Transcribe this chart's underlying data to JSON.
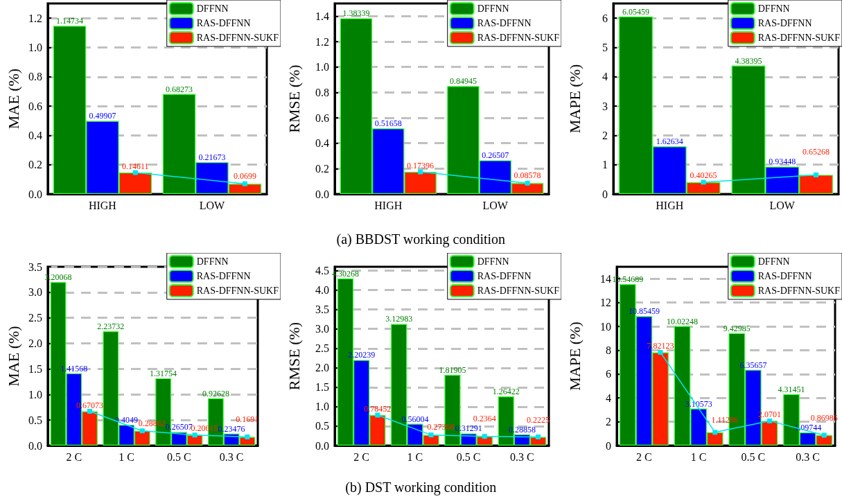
{
  "chart_data": [
    {
      "type": "bar",
      "ylabel": "MAE (%)",
      "categories": [
        "HIGH",
        "LOW"
      ],
      "ylim": [
        0,
        1.3
      ],
      "yticks": [
        {
          "value": 0,
          "label": "0.0"
        },
        {
          "value": 0.2,
          "label": "0.2"
        },
        {
          "value": 0.4,
          "label": "0.4"
        },
        {
          "value": 0.6,
          "label": "0.6"
        },
        {
          "value": 0.8,
          "label": "0.8"
        },
        {
          "value": 1,
          "label": "1.0"
        },
        {
          "value": 1.2,
          "label": "1.2"
        }
      ],
      "grid": "y",
      "legend": "top right",
      "series": [
        {
          "name": "DFFNN",
          "color": "#008000",
          "values": [
            1.14734,
            0.68273
          ],
          "value_labels": [
            "1.14734",
            "0.68273"
          ]
        },
        {
          "name": "RAS-DFFNN",
          "color": "#0000ff",
          "values": [
            0.49907,
            0.21673
          ],
          "value_labels": [
            "0.49907",
            "0.21673"
          ]
        },
        {
          "name": "RAS-DFFNN-SUKF",
          "color": "#ff2000",
          "values": [
            0.14611,
            0.0699
          ],
          "value_labels": [
            "0.14611",
            "0.0699"
          ]
        },
        {
          "type": "line",
          "color": "#00e5ee",
          "marker": "square",
          "values": [
            0.14611,
            0.0699
          ]
        }
      ]
    },
    {
      "type": "bar",
      "ylabel": "RMSE (%)",
      "categories": [
        "HIGH",
        "LOW"
      ],
      "ylim": [
        0,
        1.5
      ],
      "yticks": [
        {
          "value": 0,
          "label": "0.0"
        },
        {
          "value": 0.2,
          "label": "0.2"
        },
        {
          "value": 0.4,
          "label": "0.4"
        },
        {
          "value": 0.6,
          "label": "0.6"
        },
        {
          "value": 0.8,
          "label": "0.8"
        },
        {
          "value": 1,
          "label": "1.0"
        },
        {
          "value": 1.2,
          "label": "1.2"
        },
        {
          "value": 1.4,
          "label": "1.4"
        }
      ],
      "grid": "y",
      "legend": "top right",
      "annotations": [
        "(a) BBDST working condition"
      ],
      "series": [
        {
          "name": "DFFNN",
          "color": "#008000",
          "values": [
            1.38339,
            0.84945
          ],
          "value_labels": [
            "1.38339",
            "0.84945"
          ]
        },
        {
          "name": "RAS-DFFNN",
          "color": "#0000ff",
          "values": [
            0.51658,
            0.26507
          ],
          "value_labels": [
            "0.51658",
            "0.26507"
          ]
        },
        {
          "name": "RAS-DFFNN-SUKF",
          "color": "#ff2000",
          "values": [
            0.17396,
            0.08578
          ],
          "value_labels": [
            "0.17396",
            "0.08578"
          ]
        },
        {
          "type": "line",
          "color": "#00e5ee",
          "marker": "square",
          "values": [
            0.17396,
            0.08578
          ]
        }
      ]
    },
    {
      "type": "bar",
      "ylabel": "MAPE (%)",
      "categories": [
        "HIGH",
        "LOW"
      ],
      "ylim": [
        0,
        6.5
      ],
      "yticks": [
        0,
        1,
        2,
        3,
        4,
        5,
        6
      ],
      "grid": "y",
      "legend": "top right",
      "series": [
        {
          "name": "DFFNN",
          "color": "#008000",
          "values": [
            6.05459,
            4.38395
          ],
          "value_labels": [
            "6.05459",
            "4.38395"
          ]
        },
        {
          "name": "RAS-DFFNN",
          "color": "#0000ff",
          "values": [
            1.62634,
            0.93448
          ],
          "value_labels": [
            "1.62634",
            "0.93448"
          ]
        },
        {
          "name": "RAS-DFFNN-SUKF",
          "color": "#ff2000",
          "values": [
            0.40265,
            0.65268
          ],
          "value_labels": [
            "0.40265",
            "0.65268"
          ]
        },
        {
          "type": "line",
          "color": "#00e5ee",
          "marker": "square",
          "values": [
            0.40265,
            0.65268
          ]
        }
      ]
    },
    {
      "type": "bar",
      "ylabel": "MAE (%)",
      "categories": [
        "2 C",
        "1 C",
        "0.5 C",
        "0.3 C"
      ],
      "ylim": [
        0,
        3.5
      ],
      "yticks": [
        {
          "value": 0,
          "label": "0.0"
        },
        {
          "value": 0.5,
          "label": "0.5"
        },
        {
          "value": 1,
          "label": "1.0"
        },
        {
          "value": 1.5,
          "label": "1.5"
        },
        {
          "value": 2,
          "label": "2.0"
        },
        {
          "value": 2.5,
          "label": "2.5"
        },
        {
          "value": 3,
          "label": "3.0"
        },
        {
          "value": 3.5,
          "label": "3.5"
        }
      ],
      "grid": "y",
      "legend": "top right",
      "series": [
        {
          "name": "DFFNN",
          "color": "#008000",
          "values": [
            3.20068,
            2.23732,
            1.31754,
            0.92628
          ],
          "value_labels": [
            "3.20068",
            "2.23732",
            "1.31754",
            "0.92628"
          ]
        },
        {
          "name": "RAS-DFFNN",
          "color": "#0000ff",
          "values": [
            1.41568,
            0.4049,
            0.26507,
            0.23476
          ],
          "value_labels": [
            "1.41568",
            "0.4049",
            "0.26507",
            "0.23476"
          ]
        },
        {
          "name": "RAS-DFFNN-SUKF",
          "color": "#ff2000",
          "values": [
            0.67073,
            0.28862,
            0.20615,
            0.1691
          ],
          "value_labels": [
            "0.67073",
            "0.28862",
            "0.20615",
            "0.1691"
          ]
        },
        {
          "type": "line",
          "color": "#00e5ee",
          "marker": "square",
          "values": [
            0.67073,
            0.28862,
            0.20615,
            0.1691
          ]
        }
      ]
    },
    {
      "type": "bar",
      "ylabel": "RMSE (%)",
      "categories": [
        "2 C",
        "1 C",
        "0.5 C",
        "0.3 C"
      ],
      "ylim": [
        0,
        4.6
      ],
      "yticks": [
        {
          "value": 0,
          "label": "0.0"
        },
        {
          "value": 0.5,
          "label": "0.5"
        },
        {
          "value": 1,
          "label": "1.0"
        },
        {
          "value": 1.5,
          "label": "1.5"
        },
        {
          "value": 2,
          "label": "2.0"
        },
        {
          "value": 2.5,
          "label": "2.5"
        },
        {
          "value": 3,
          "label": "3.0"
        },
        {
          "value": 3.5,
          "label": "3.5"
        },
        {
          "value": 4,
          "label": "4.0"
        },
        {
          "value": 4.5,
          "label": "4.5"
        }
      ],
      "grid": "y",
      "legend": "top right",
      "annotations": [
        "(b) DST working condition"
      ],
      "series": [
        {
          "name": "DFFNN",
          "color": "#008000",
          "values": [
            4.30268,
            3.12983,
            1.81905,
            1.26422
          ],
          "value_labels": [
            "4.30268",
            "3.12983",
            "1.81905",
            "1.26422"
          ]
        },
        {
          "name": "RAS-DFFNN",
          "color": "#0000ff",
          "values": [
            2.20239,
            0.56004,
            0.31291,
            0.28858
          ],
          "value_labels": [
            "2.20239",
            "0.56004",
            "0.31291",
            "0.28858"
          ]
        },
        {
          "name": "RAS-DFFNN-SUKF",
          "color": "#ff2000",
          "values": [
            0.78452,
            0.27368,
            0.2364,
            0.2225
          ],
          "value_labels": [
            "0.78452",
            "0.27368",
            "0.2364",
            "0.2225"
          ]
        },
        {
          "type": "line",
          "color": "#00e5ee",
          "marker": "square",
          "values": [
            0.78452,
            0.27368,
            0.2364,
            0.2225
          ]
        }
      ]
    },
    {
      "type": "bar",
      "ylabel": "MAPE (%)",
      "categories": [
        "2 C",
        "1 C",
        "0.5 C",
        "0.3 C"
      ],
      "ylim": [
        0,
        15
      ],
      "yticks": [
        0,
        2,
        4,
        6,
        8,
        10,
        12,
        14
      ],
      "grid": "y",
      "legend": "top right",
      "series": [
        {
          "name": "DFFNN",
          "color": "#008000",
          "values": [
            13.54689,
            10.02248,
            9.42985,
            4.31451
          ],
          "value_labels": [
            "13.54689",
            "10.02248",
            "9.42985",
            "4.31451"
          ]
        },
        {
          "name": "RAS-DFFNN",
          "color": "#0000ff",
          "values": [
            10.85459,
            3.10573,
            6.35657,
            1.09744
          ],
          "value_labels": [
            "10.85459",
            "3.10573",
            "6.35657",
            "1.09744"
          ]
        },
        {
          "name": "RAS-DFFNN-SUKF",
          "color": "#ff2000",
          "values": [
            7.82123,
            1.11286,
            2.0701,
            0.86986
          ],
          "value_labels": [
            "7.82123",
            "1.11286",
            "2.0701",
            "0.86986"
          ]
        },
        {
          "type": "line",
          "color": "#00e5ee",
          "marker": "square",
          "values": [
            7.82123,
            1.11286,
            2.0701,
            0.86986
          ]
        }
      ]
    }
  ]
}
